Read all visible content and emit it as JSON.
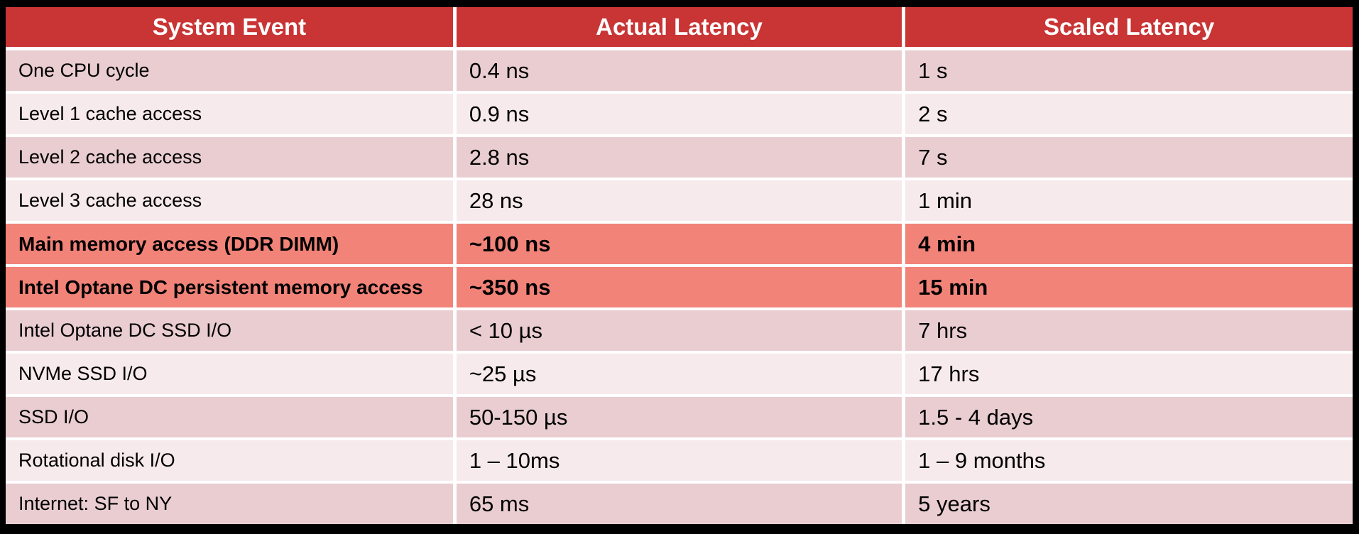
{
  "chart_data": {
    "type": "table",
    "columns": [
      "System Event",
      "Actual Latency",
      "Scaled Latency"
    ],
    "rows": [
      {
        "event": "One CPU cycle",
        "actual": "0.4 ns",
        "scaled": "1 s",
        "highlight": false
      },
      {
        "event": "Level 1 cache access",
        "actual": "0.9 ns",
        "scaled": "2 s",
        "highlight": false
      },
      {
        "event": "Level 2 cache access",
        "actual": "2.8 ns",
        "scaled": "7 s",
        "highlight": false
      },
      {
        "event": "Level 3 cache access",
        "actual": "28 ns",
        "scaled": "1 min",
        "highlight": false
      },
      {
        "event": "Main memory access (DDR DIMM)",
        "actual": "~100 ns",
        "scaled": "4 min",
        "highlight": true
      },
      {
        "event": "Intel Optane DC persistent memory access",
        "actual": "~350 ns",
        "scaled": "15 min",
        "highlight": true
      },
      {
        "event": "Intel Optane DC SSD I/O",
        "actual": "< 10 µs",
        "scaled": "7 hrs",
        "highlight": false
      },
      {
        "event": "NVMe SSD I/O",
        "actual": "~25 µs",
        "scaled": "17 hrs",
        "highlight": false
      },
      {
        "event": "SSD I/O",
        "actual": "50-150 µs",
        "scaled": "1.5 - 4 days",
        "highlight": false
      },
      {
        "event": "Rotational disk I/O",
        "actual": "1 – 10ms",
        "scaled": "1 – 9 months",
        "highlight": false
      },
      {
        "event": "Internet: SF to NY",
        "actual": "65 ms",
        "scaled": "5 years",
        "highlight": false
      }
    ]
  },
  "colors": {
    "frame": "#000000",
    "header_bg": "#C93434",
    "header_text": "#FFFFFF",
    "row_dark": "#E9CDD1",
    "row_light": "#F7EAEC",
    "highlight": "#F28378",
    "grid": "#FFFFFF",
    "body_text": "#000000"
  }
}
